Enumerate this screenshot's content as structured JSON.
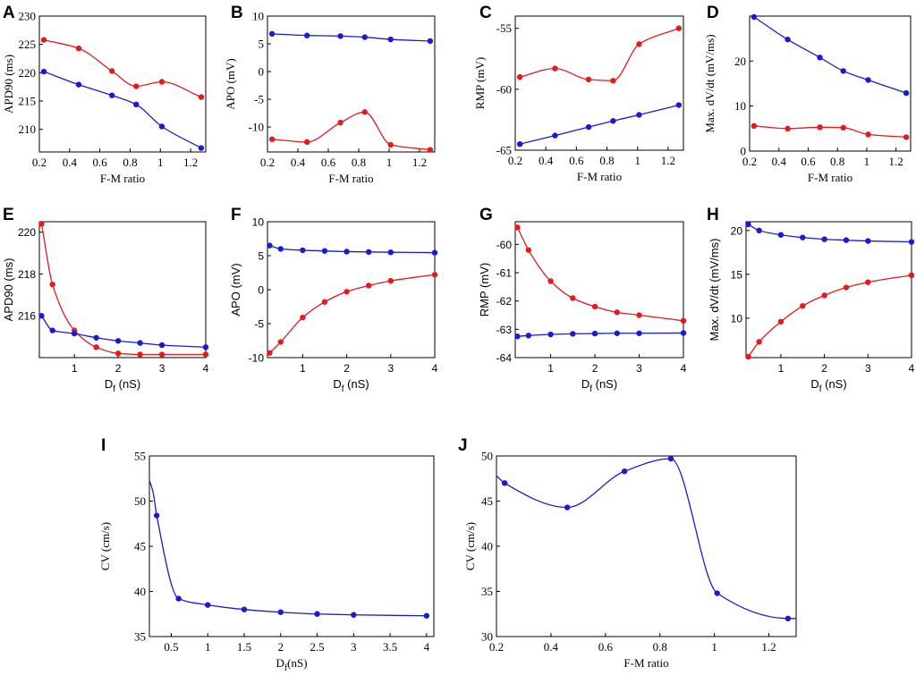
{
  "figure": {
    "colors": {
      "red": "#e8191e",
      "blue": "#1a1ad6"
    }
  },
  "chart_data": [
    {
      "id": "A",
      "panel_label": "A",
      "type": "line",
      "xlabel": "F-M ratio",
      "ylabel": "APD90 (ms)",
      "xlim": [
        0.2,
        1.3
      ],
      "ylim": [
        206,
        230
      ],
      "xticks": [
        0.2,
        0.4,
        0.6,
        0.8,
        1,
        1.2
      ],
      "xtick_labels": [
        "0.2",
        "0.4",
        "0.6",
        "0.8",
        "1",
        "1.2"
      ],
      "yticks": [
        210,
        215,
        220,
        225,
        230
      ],
      "ytick_labels": [
        "210",
        "215",
        "220",
        "225",
        "230"
      ],
      "series": [
        {
          "name": "red",
          "color": "#e8191e",
          "x": [
            0.23,
            0.46,
            0.68,
            0.84,
            1.01,
            1.27
          ],
          "y": [
            225.8,
            224.3,
            220.3,
            217.6,
            218.4,
            215.7
          ]
        },
        {
          "name": "blue",
          "color": "#1a1ad6",
          "x": [
            0.23,
            0.46,
            0.68,
            0.84,
            1.01,
            1.27
          ],
          "y": [
            220.2,
            217.9,
            216.0,
            214.4,
            210.5,
            206.7
          ]
        }
      ]
    },
    {
      "id": "B",
      "panel_label": "B",
      "type": "line",
      "xlabel": "F-M ratio",
      "ylabel": "APO (mV)",
      "xlim": [
        0.2,
        1.3
      ],
      "ylim": [
        -14.5,
        10
      ],
      "xticks": [
        0.2,
        0.4,
        0.6,
        0.8,
        1,
        1.2
      ],
      "xtick_labels": [
        "0.2",
        "0.4",
        "0.6",
        "0.8",
        "1",
        "1.2"
      ],
      "yticks": [
        -10,
        -5,
        0,
        5,
        10
      ],
      "ytick_labels": [
        "-10",
        "-5",
        "0",
        "5",
        "10"
      ],
      "series": [
        {
          "name": "blue",
          "color": "#1a1ad6",
          "x": [
            0.23,
            0.46,
            0.68,
            0.84,
            1.01,
            1.27
          ],
          "y": [
            6.8,
            6.5,
            6.4,
            6.2,
            5.8,
            5.5
          ]
        },
        {
          "name": "red",
          "color": "#e8191e",
          "x": [
            0.23,
            0.46,
            0.68,
            0.84,
            1.01,
            1.27
          ],
          "y": [
            -12.2,
            -12.7,
            -9.2,
            -7.3,
            -13.2,
            -14.1
          ]
        }
      ]
    },
    {
      "id": "C",
      "panel_label": "C",
      "type": "line",
      "xlabel": "F-M ratio",
      "ylabel": "RMP (mV)",
      "xlim": [
        0.2,
        1.3
      ],
      "ylim": [
        -65,
        -54
      ],
      "xticks": [
        0.2,
        0.4,
        0.6,
        0.8,
        1,
        1.2
      ],
      "xtick_labels": [
        "0.2",
        "0.4",
        "0.6",
        "0.8",
        "1",
        "1.2"
      ],
      "yticks": [
        -65,
        -60,
        -55
      ],
      "ytick_labels": [
        "-65",
        "-60",
        "-55"
      ],
      "series": [
        {
          "name": "red",
          "color": "#e8191e",
          "x": [
            0.23,
            0.46,
            0.68,
            0.84,
            1.01,
            1.27
          ],
          "y": [
            -59.0,
            -58.3,
            -59.2,
            -59.3,
            -56.3,
            -55.0
          ]
        },
        {
          "name": "blue",
          "color": "#1a1ad6",
          "x": [
            0.23,
            0.46,
            0.68,
            0.84,
            1.01,
            1.27
          ],
          "y": [
            -64.5,
            -63.8,
            -63.1,
            -62.6,
            -62.1,
            -61.3
          ]
        }
      ]
    },
    {
      "id": "D",
      "panel_label": "D",
      "type": "line",
      "xlabel": "F-M ratio",
      "ylabel": "Max. dV/dt (mV/ms)",
      "xlim": [
        0.2,
        1.3
      ],
      "ylim": [
        0,
        30
      ],
      "xticks": [
        0.2,
        0.4,
        0.6,
        0.8,
        1,
        1.2
      ],
      "xtick_labels": [
        "0.2",
        "0.4",
        "0.6",
        "0.8",
        "1",
        "1.2"
      ],
      "yticks": [
        0,
        10,
        20
      ],
      "ytick_labels": [
        "0",
        "10",
        "20"
      ],
      "series": [
        {
          "name": "blue",
          "color": "#1a1ad6",
          "x": [
            0.23,
            0.46,
            0.68,
            0.84,
            1.01,
            1.27
          ],
          "y": [
            29.8,
            24.8,
            20.8,
            17.8,
            15.8,
            12.9
          ]
        },
        {
          "name": "red",
          "color": "#e8191e",
          "x": [
            0.23,
            0.46,
            0.68,
            0.84,
            1.01,
            1.27
          ],
          "y": [
            5.6,
            5.0,
            5.3,
            5.2,
            3.7,
            3.1
          ]
        }
      ]
    },
    {
      "id": "E",
      "panel_label": "E",
      "type": "line",
      "xlabel": "D",
      "xlabel_sub": "f",
      "xlabel_unit": " (nS)",
      "ylabel": "APD90 (ms)",
      "xlim": [
        0.2,
        4
      ],
      "ylim": [
        214,
        220.5
      ],
      "xticks": [
        1,
        2,
        3,
        4
      ],
      "xtick_labels": [
        "1",
        "2",
        "3",
        "4"
      ],
      "yticks": [
        216,
        218,
        220
      ],
      "ytick_labels": [
        "216",
        "218",
        "220"
      ],
      "series": [
        {
          "name": "red",
          "color": "#e8191e",
          "x": [
            0.25,
            0.5,
            1,
            1.5,
            2,
            2.5,
            3,
            4
          ],
          "y": [
            220.4,
            217.5,
            215.3,
            214.5,
            214.2,
            214.15,
            214.15,
            214.15
          ]
        },
        {
          "name": "blue",
          "color": "#1a1ad6",
          "x": [
            0.25,
            0.5,
            1,
            1.5,
            2,
            2.5,
            3,
            4
          ],
          "y": [
            216.0,
            215.3,
            215.15,
            214.95,
            214.8,
            214.7,
            214.6,
            214.5
          ]
        }
      ]
    },
    {
      "id": "F",
      "panel_label": "F",
      "type": "line",
      "xlabel": "D",
      "xlabel_sub": "f",
      "xlabel_unit": " (nS)",
      "ylabel": "APO (mV)",
      "xlim": [
        0.2,
        4
      ],
      "ylim": [
        -10,
        10
      ],
      "xticks": [
        1,
        2,
        3,
        4
      ],
      "xtick_labels": [
        "1",
        "2",
        "3",
        "4"
      ],
      "yticks": [
        -10,
        -5,
        0,
        5,
        10
      ],
      "ytick_labels": [
        "-10",
        "-5",
        "0",
        "5",
        "10"
      ],
      "series": [
        {
          "name": "blue",
          "color": "#1a1ad6",
          "x": [
            0.25,
            0.5,
            1,
            1.5,
            2,
            2.5,
            3,
            4
          ],
          "y": [
            6.5,
            6.0,
            5.8,
            5.7,
            5.6,
            5.55,
            5.5,
            5.45
          ]
        },
        {
          "name": "red",
          "color": "#e8191e",
          "x": [
            0.25,
            0.5,
            1,
            1.5,
            2,
            2.5,
            3,
            4
          ],
          "y": [
            -9.3,
            -7.7,
            -4.1,
            -1.8,
            -0.3,
            0.6,
            1.3,
            2.2
          ]
        }
      ]
    },
    {
      "id": "G",
      "panel_label": "G",
      "type": "line",
      "xlabel": "D",
      "xlabel_sub": "f",
      "xlabel_unit": " (nS)",
      "ylabel": "RMP (mV)",
      "xlim": [
        0.2,
        4
      ],
      "ylim": [
        -64,
        -59.2
      ],
      "xticks": [
        1,
        2,
        3,
        4
      ],
      "xtick_labels": [
        "1",
        "2",
        "3",
        "4"
      ],
      "yticks": [
        -64,
        -63,
        -62,
        -61,
        -60
      ],
      "ytick_labels": [
        "-64",
        "-63",
        "-62",
        "-61",
        "-60"
      ],
      "series": [
        {
          "name": "red",
          "color": "#e8191e",
          "x": [
            0.25,
            0.5,
            1,
            1.5,
            2,
            2.5,
            3,
            4
          ],
          "y": [
            -59.4,
            -60.2,
            -61.3,
            -61.9,
            -62.2,
            -62.4,
            -62.5,
            -62.7
          ]
        },
        {
          "name": "blue",
          "color": "#1a1ad6",
          "x": [
            0.25,
            0.5,
            1,
            1.5,
            2,
            2.5,
            3,
            4
          ],
          "y": [
            -63.25,
            -63.22,
            -63.18,
            -63.16,
            -63.15,
            -63.14,
            -63.14,
            -63.13
          ]
        }
      ]
    },
    {
      "id": "H",
      "panel_label": "H",
      "type": "line",
      "xlabel": "D",
      "xlabel_sub": "f",
      "xlabel_unit": " (nS)",
      "ylabel": "Max. dV/dt (mV/ms)",
      "xlim": [
        0.2,
        4
      ],
      "ylim": [
        5.5,
        21
      ],
      "xticks": [
        1,
        2,
        3,
        4
      ],
      "xtick_labels": [
        "1",
        "2",
        "3",
        "4"
      ],
      "yticks": [
        10,
        15,
        20
      ],
      "ytick_labels": [
        "10",
        "15",
        "20"
      ],
      "series": [
        {
          "name": "blue",
          "color": "#1a1ad6",
          "x": [
            0.25,
            0.5,
            1,
            1.5,
            2,
            2.5,
            3,
            4
          ],
          "y": [
            20.7,
            20.0,
            19.5,
            19.2,
            19.0,
            18.9,
            18.8,
            18.7
          ]
        },
        {
          "name": "red",
          "color": "#e8191e",
          "x": [
            0.25,
            0.5,
            1,
            1.5,
            2,
            2.5,
            3,
            4
          ],
          "y": [
            5.6,
            7.3,
            9.6,
            11.4,
            12.6,
            13.5,
            14.1,
            14.9
          ]
        }
      ]
    },
    {
      "id": "I",
      "panel_label": "I",
      "type": "line",
      "xlabel": "D",
      "xlabel_sub": "f",
      "xlabel_unit": "(nS)",
      "ylabel": "CV (cm/s)",
      "xlim": [
        0.2,
        4.1
      ],
      "ylim": [
        35,
        55
      ],
      "xticks": [
        0.5,
        1,
        1.5,
        2,
        2.5,
        3,
        3.5,
        4
      ],
      "xtick_labels": [
        "0.5",
        "1",
        "1.5",
        "2",
        "2.5",
        "3",
        "3.5",
        "4"
      ],
      "yticks": [
        35,
        40,
        45,
        50,
        55
      ],
      "ytick_labels": [
        "35",
        "40",
        "45",
        "50",
        "55"
      ],
      "series": [
        {
          "name": "blue",
          "color": "#1a1ad6",
          "x": [
            0.2,
            0.25,
            0.3,
            0.6,
            1,
            1.5,
            2,
            2.5,
            3,
            4
          ],
          "y": [
            52.3,
            51.0,
            48.4,
            39.2,
            38.5,
            38.0,
            37.7,
            37.5,
            37.4,
            37.3
          ],
          "markers": [
            2,
            3,
            4,
            5,
            6,
            7,
            8,
            9
          ]
        }
      ]
    },
    {
      "id": "J",
      "panel_label": "J",
      "type": "line",
      "xlabel": "F-M ratio",
      "ylabel": "CV (cm/s)",
      "xlim": [
        0.2,
        1.3
      ],
      "ylim": [
        30,
        50
      ],
      "xticks": [
        0.2,
        0.4,
        0.6,
        0.8,
        1,
        1.2
      ],
      "xtick_labels": [
        "0.2",
        "0.4",
        "0.6",
        "0.8",
        "1",
        "1.2"
      ],
      "yticks": [
        30,
        35,
        40,
        45,
        50
      ],
      "ytick_labels": [
        "30",
        "35",
        "40",
        "45",
        "50"
      ],
      "series": [
        {
          "name": "blue",
          "color": "#1a1ad6",
          "x": [
            0.2,
            0.23,
            0.46,
            0.67,
            0.84,
            1.01,
            1.27,
            1.3
          ],
          "y": [
            47.8,
            47.0,
            44.3,
            48.3,
            49.7,
            34.8,
            32.0,
            32.0
          ],
          "markers": [
            1,
            2,
            3,
            4,
            5,
            6
          ]
        }
      ]
    }
  ]
}
